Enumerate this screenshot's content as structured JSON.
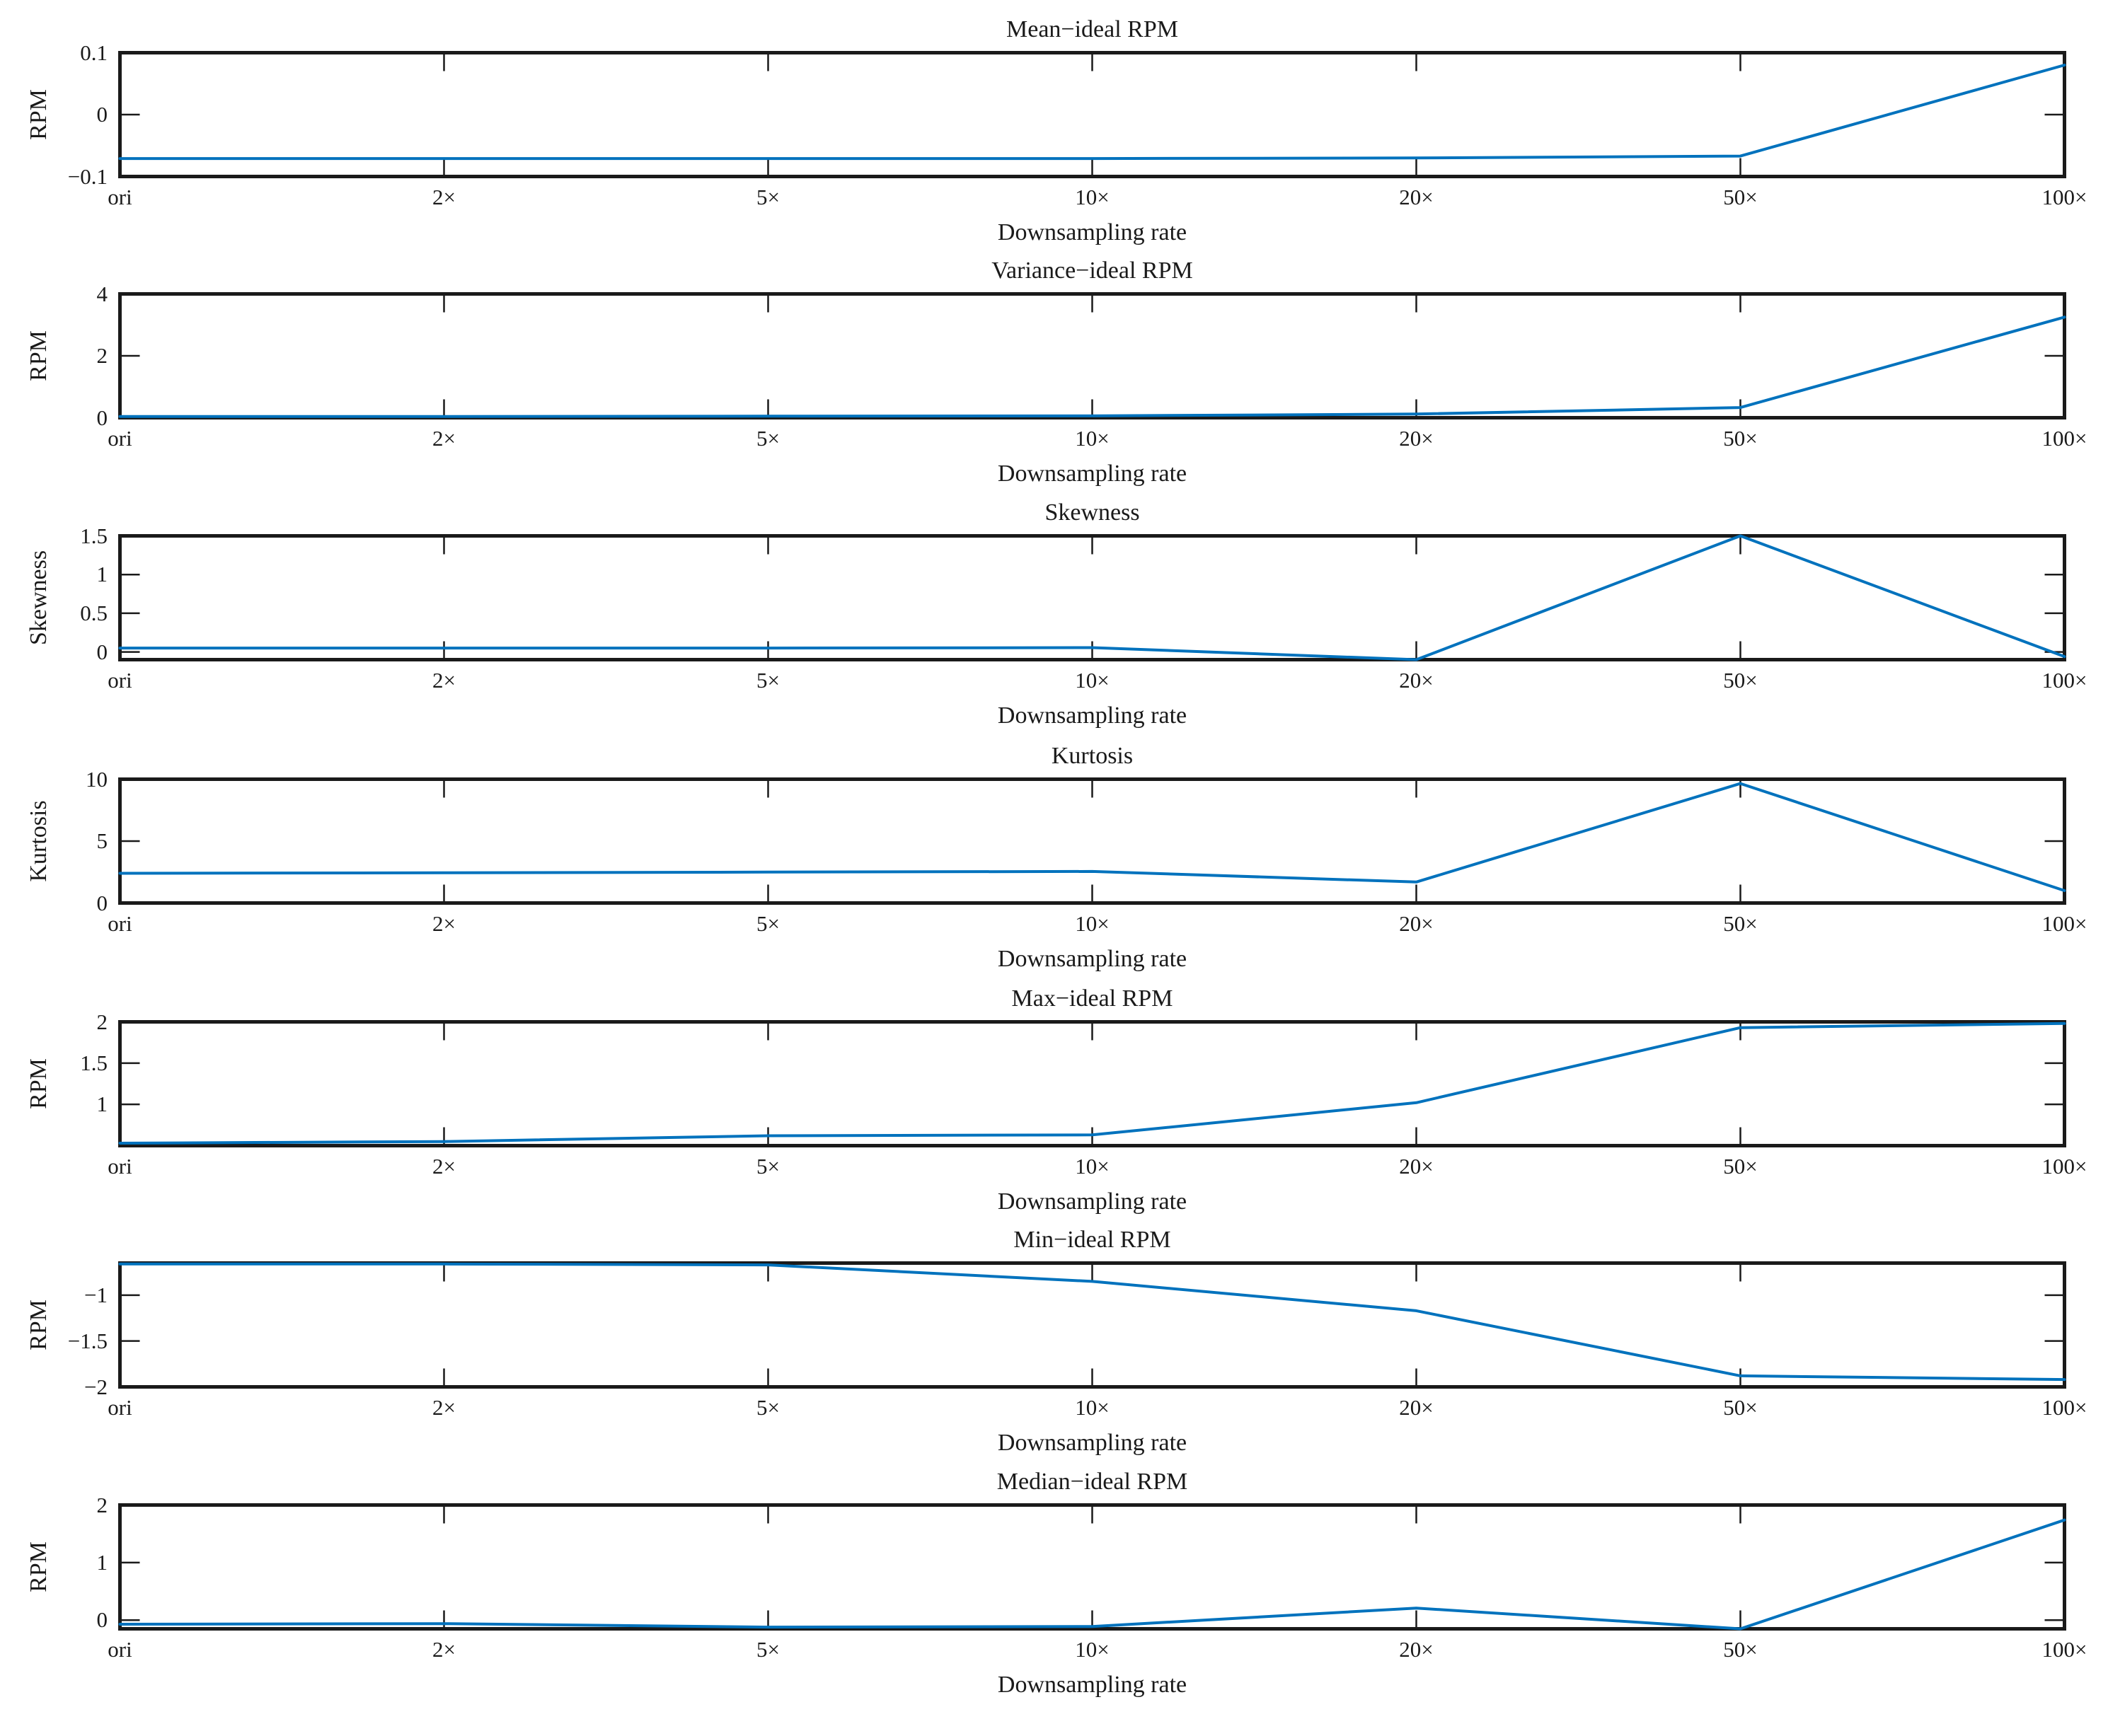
{
  "figure": {
    "background": "#ffffff",
    "axis_color": "#1a1a1a",
    "line_color": "#0072BD",
    "description": "Column of seven line subplots comparing statistics of estimated RPM vs ideal RPM across downsampling rates"
  },
  "chart_data": [
    {
      "type": "line",
      "title": "Mean−ideal RPM",
      "ylabel": "RPM",
      "xlabel": "Downsampling rate",
      "categories": [
        "ori",
        "2×",
        "5×",
        "10×",
        "20×",
        "50×",
        "100×"
      ],
      "values": [
        -0.071,
        -0.071,
        -0.071,
        -0.071,
        -0.07,
        -0.067,
        0.08
      ],
      "ylim": [
        -0.1,
        0.1
      ],
      "yticks": [
        -0.1,
        0,
        0.1
      ],
      "ytick_labels": [
        "−0.1",
        "0",
        "0.1"
      ],
      "grid": false,
      "legend": "none"
    },
    {
      "type": "line",
      "title": "Variance−ideal RPM",
      "ylabel": "RPM",
      "xlabel": "Downsampling rate",
      "categories": [
        "ori",
        "2×",
        "5×",
        "10×",
        "20×",
        "50×",
        "100×"
      ],
      "values": [
        0.04,
        0.04,
        0.05,
        0.06,
        0.12,
        0.33,
        3.25
      ],
      "ylim": [
        0,
        4
      ],
      "yticks": [
        0,
        2,
        4
      ],
      "ytick_labels": [
        "0",
        "2",
        "4"
      ],
      "grid": false,
      "legend": "none"
    },
    {
      "type": "line",
      "title": "Skewness",
      "ylabel": "Skewness",
      "xlabel": "Downsampling rate",
      "categories": [
        "ori",
        "2×",
        "5×",
        "10×",
        "20×",
        "50×",
        "100×"
      ],
      "values": [
        0.05,
        0.05,
        0.05,
        0.055,
        -0.1,
        1.5,
        -0.06
      ],
      "ylim": [
        -0.1,
        1.5
      ],
      "yticks": [
        0,
        0.5,
        1,
        1.5
      ],
      "ytick_labels": [
        "0",
        "0.5",
        "1",
        "1.5"
      ],
      "grid": false,
      "legend": "none"
    },
    {
      "type": "line",
      "title": "Kurtosis",
      "ylabel": "Kurtosis",
      "xlabel": "Downsampling rate",
      "categories": [
        "ori",
        "2×",
        "5×",
        "10×",
        "20×",
        "50×",
        "100×"
      ],
      "values": [
        2.4,
        2.44,
        2.5,
        2.55,
        1.7,
        9.65,
        1.0
      ],
      "ylim": [
        0,
        10
      ],
      "yticks": [
        0,
        5,
        10
      ],
      "ytick_labels": [
        "0",
        "5",
        "10"
      ],
      "grid": false,
      "legend": "none"
    },
    {
      "type": "line",
      "title": "Max−ideal RPM",
      "ylabel": "RPM",
      "xlabel": "Downsampling rate",
      "categories": [
        "ori",
        "2×",
        "5×",
        "10×",
        "20×",
        "50×",
        "100×"
      ],
      "values": [
        0.53,
        0.55,
        0.62,
        0.63,
        1.02,
        1.93,
        1.98
      ],
      "ylim": [
        0.5,
        2
      ],
      "yticks": [
        1,
        1.5,
        2
      ],
      "ytick_labels": [
        "1",
        "1.5",
        "2"
      ],
      "grid": false,
      "legend": "none"
    },
    {
      "type": "line",
      "title": "Min−ideal RPM",
      "ylabel": "RPM",
      "xlabel": "Downsampling rate",
      "categories": [
        "ori",
        "2×",
        "5×",
        "10×",
        "20×",
        "50×",
        "100×"
      ],
      "values": [
        -0.66,
        -0.66,
        -0.67,
        -0.85,
        -1.17,
        -1.88,
        -1.92
      ],
      "ylim": [
        -2,
        -0.65
      ],
      "yticks": [
        -2,
        -1.5,
        -1
      ],
      "ytick_labels": [
        "−2",
        "−1.5",
        "−1"
      ],
      "grid": false,
      "legend": "none"
    },
    {
      "type": "line",
      "title": "Median−ideal RPM",
      "ylabel": "RPM",
      "xlabel": "Downsampling rate",
      "categories": [
        "ori",
        "2×",
        "5×",
        "10×",
        "20×",
        "50×",
        "100×"
      ],
      "values": [
        -0.07,
        -0.06,
        -0.12,
        -0.11,
        0.21,
        -0.15,
        1.74
      ],
      "ylim": [
        -0.15,
        2
      ],
      "yticks": [
        0,
        1,
        2
      ],
      "ytick_labels": [
        "0",
        "1",
        "2"
      ],
      "grid": false,
      "legend": "none"
    }
  ]
}
